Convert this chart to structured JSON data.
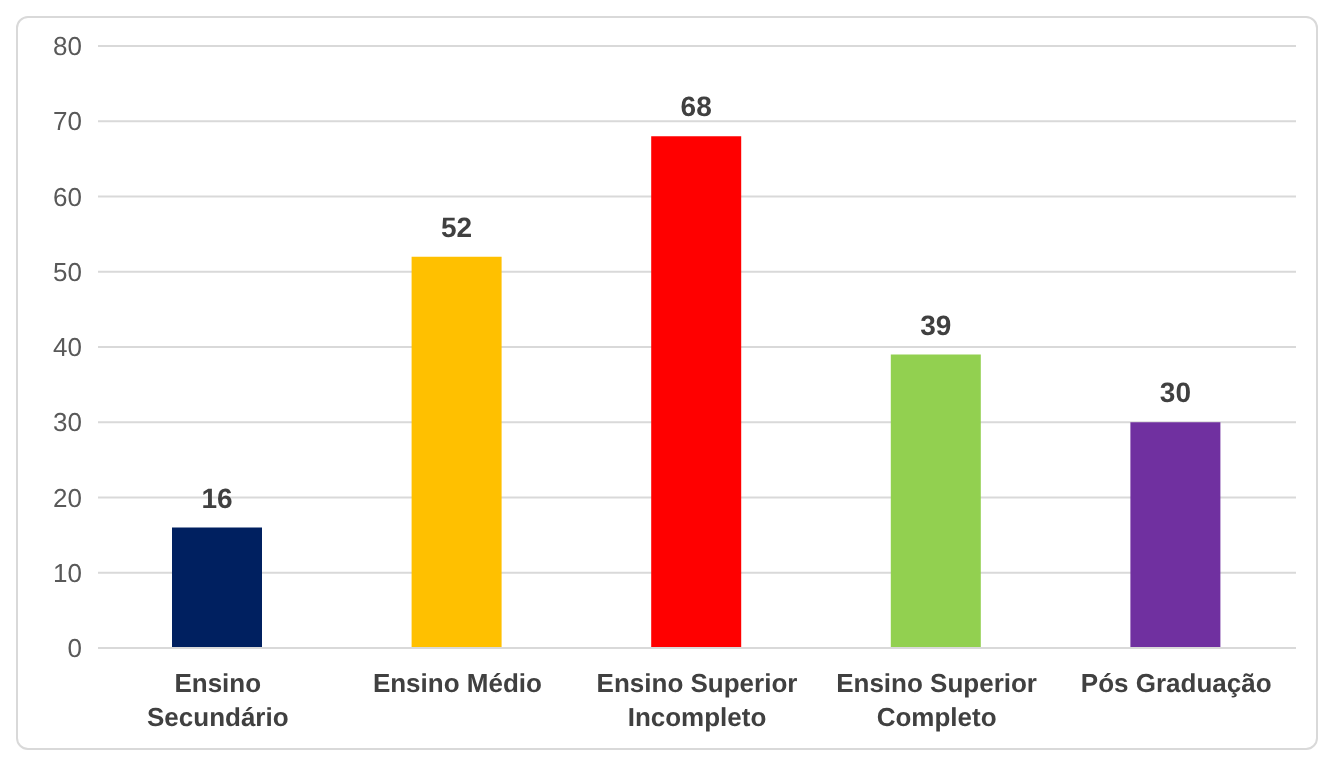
{
  "chart_data": {
    "type": "bar",
    "categories": [
      "Ensino Secundário",
      "Ensino Médio",
      "Ensino Superior Incompleto",
      "Ensino Superior Completo",
      "Pós Graduação"
    ],
    "values": [
      16,
      52,
      68,
      39,
      30
    ],
    "colors": [
      "#002060",
      "#ffc000",
      "#ff0000",
      "#92d050",
      "#7030a0"
    ],
    "ylim": [
      0,
      80
    ],
    "yticks": [
      0,
      10,
      20,
      30,
      40,
      50,
      60,
      70,
      80
    ],
    "grid": "y",
    "data_labels": true
  }
}
